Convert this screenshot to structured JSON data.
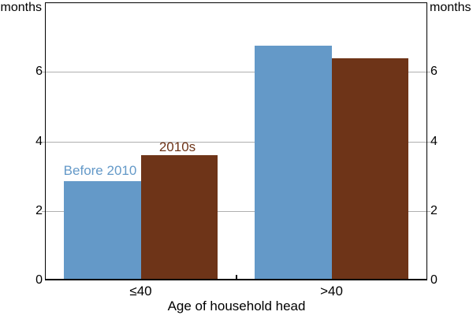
{
  "chart_data": {
    "type": "bar",
    "title": "",
    "categories": [
      "≤40",
      ">40"
    ],
    "series": [
      {
        "name": "Before 2010",
        "color": "#6499C8",
        "values": [
          2.85,
          6.75
        ]
      },
      {
        "name": "2010s",
        "color": "#6E3418",
        "values": [
          3.6,
          6.4
        ]
      }
    ],
    "xlabel": "Age of household head",
    "ylabel_left": "months",
    "ylabel_right": "months",
    "ylim": [
      0,
      8
    ],
    "yticks": [
      0,
      2,
      4,
      6
    ],
    "yticks_both_sides": true,
    "grid": "horizontal",
    "gridline_color": "#AFAFAF",
    "axis_color": "#000000",
    "legend_position": "inline-labels-above-first-group-bars"
  }
}
